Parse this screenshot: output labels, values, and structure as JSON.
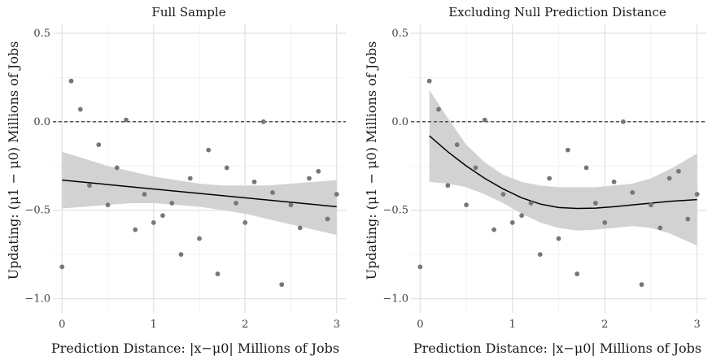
{
  "chart_data": [
    {
      "type": "scatter",
      "title": "Full Sample",
      "xlabel": "Prediction Distance: |x−μ0| Millions of Jobs",
      "ylabel": "Updating: (μ1 − μ0) Millions of Jobs",
      "x_ticks": [
        "0",
        "1",
        "2",
        "3"
      ],
      "y_ticks": [
        "−1.0",
        "−0.5",
        "0.0",
        "0.5"
      ],
      "xlim": [
        -0.1,
        3.1
      ],
      "ylim": [
        -1.08,
        0.55
      ],
      "reference_line_y": 0,
      "grid": true,
      "points": [
        {
          "x": 0.0,
          "y": -0.82
        },
        {
          "x": 0.1,
          "y": 0.23
        },
        {
          "x": 0.2,
          "y": 0.07
        },
        {
          "x": 0.3,
          "y": -0.36
        },
        {
          "x": 0.4,
          "y": -0.13
        },
        {
          "x": 0.5,
          "y": -0.47
        },
        {
          "x": 0.6,
          "y": -0.26
        },
        {
          "x": 0.7,
          "y": 0.01
        },
        {
          "x": 0.8,
          "y": -0.61
        },
        {
          "x": 0.9,
          "y": -0.41
        },
        {
          "x": 1.0,
          "y": -0.57
        },
        {
          "x": 1.1,
          "y": -0.53
        },
        {
          "x": 1.2,
          "y": -0.46
        },
        {
          "x": 1.3,
          "y": -0.75
        },
        {
          "x": 1.4,
          "y": -0.32
        },
        {
          "x": 1.5,
          "y": -0.66
        },
        {
          "x": 1.6,
          "y": -0.16
        },
        {
          "x": 1.7,
          "y": -0.86
        },
        {
          "x": 1.8,
          "y": -0.26
        },
        {
          "x": 1.9,
          "y": -0.46
        },
        {
          "x": 2.0,
          "y": -0.57
        },
        {
          "x": 2.1,
          "y": -0.34
        },
        {
          "x": 2.2,
          "y": 0.0
        },
        {
          "x": 2.3,
          "y": -0.4
        },
        {
          "x": 2.4,
          "y": -0.92
        },
        {
          "x": 2.5,
          "y": -0.47
        },
        {
          "x": 2.6,
          "y": -0.6
        },
        {
          "x": 2.7,
          "y": -0.32
        },
        {
          "x": 2.8,
          "y": -0.28
        },
        {
          "x": 2.9,
          "y": -0.55
        },
        {
          "x": 3.0,
          "y": -0.41
        }
      ],
      "fit": {
        "x": [
          0.0,
          3.0
        ],
        "y": [
          -0.33,
          -0.48
        ]
      },
      "band": {
        "x": [
          0.0,
          0.25,
          0.5,
          0.75,
          1.0,
          1.25,
          1.5,
          1.75,
          2.0,
          2.25,
          2.5,
          2.75,
          3.0
        ],
        "lower": [
          -0.49,
          -0.48,
          -0.47,
          -0.46,
          -0.46,
          -0.47,
          -0.48,
          -0.5,
          -0.52,
          -0.55,
          -0.58,
          -0.61,
          -0.64
        ],
        "upper": [
          -0.17,
          -0.21,
          -0.25,
          -0.28,
          -0.31,
          -0.33,
          -0.35,
          -0.36,
          -0.36,
          -0.36,
          -0.35,
          -0.34,
          -0.33
        ]
      }
    },
    {
      "type": "scatter",
      "title": "Excluding Null Prediction Distance",
      "xlabel": "Prediction Distance: |x−μ0| Millions of Jobs",
      "ylabel": "Updating: (μ1 − μ0) Millions of Jobs",
      "x_ticks": [
        "0",
        "1",
        "2",
        "3"
      ],
      "y_ticks": [
        "−1.0",
        "−0.5",
        "0.0",
        "0.5"
      ],
      "xlim": [
        -0.1,
        3.1
      ],
      "ylim": [
        -1.08,
        0.55
      ],
      "reference_line_y": 0,
      "grid": true,
      "points": [
        {
          "x": 0.0,
          "y": -0.82
        },
        {
          "x": 0.1,
          "y": 0.23
        },
        {
          "x": 0.2,
          "y": 0.07
        },
        {
          "x": 0.3,
          "y": -0.36
        },
        {
          "x": 0.4,
          "y": -0.13
        },
        {
          "x": 0.5,
          "y": -0.47
        },
        {
          "x": 0.6,
          "y": -0.26
        },
        {
          "x": 0.7,
          "y": 0.01
        },
        {
          "x": 0.8,
          "y": -0.61
        },
        {
          "x": 0.9,
          "y": -0.41
        },
        {
          "x": 1.0,
          "y": -0.57
        },
        {
          "x": 1.1,
          "y": -0.53
        },
        {
          "x": 1.2,
          "y": -0.46
        },
        {
          "x": 1.3,
          "y": -0.75
        },
        {
          "x": 1.4,
          "y": -0.32
        },
        {
          "x": 1.5,
          "y": -0.66
        },
        {
          "x": 1.6,
          "y": -0.16
        },
        {
          "x": 1.7,
          "y": -0.86
        },
        {
          "x": 1.8,
          "y": -0.26
        },
        {
          "x": 1.9,
          "y": -0.46
        },
        {
          "x": 2.0,
          "y": -0.57
        },
        {
          "x": 2.1,
          "y": -0.34
        },
        {
          "x": 2.2,
          "y": 0.0
        },
        {
          "x": 2.3,
          "y": -0.4
        },
        {
          "x": 2.4,
          "y": -0.92
        },
        {
          "x": 2.5,
          "y": -0.47
        },
        {
          "x": 2.6,
          "y": -0.6
        },
        {
          "x": 2.7,
          "y": -0.32
        },
        {
          "x": 2.8,
          "y": -0.28
        },
        {
          "x": 2.9,
          "y": -0.55
        },
        {
          "x": 3.0,
          "y": -0.41
        }
      ],
      "fit": {
        "x": [
          0.1,
          0.3,
          0.5,
          0.7,
          0.9,
          1.1,
          1.3,
          1.5,
          1.7,
          1.9,
          2.1,
          2.3,
          2.5,
          2.7,
          3.0
        ],
        "y": [
          -0.08,
          -0.17,
          -0.25,
          -0.32,
          -0.38,
          -0.43,
          -0.465,
          -0.485,
          -0.49,
          -0.488,
          -0.48,
          -0.47,
          -0.46,
          -0.45,
          -0.44
        ]
      },
      "band": {
        "x": [
          0.1,
          0.3,
          0.5,
          0.7,
          0.9,
          1.1,
          1.3,
          1.5,
          1.7,
          1.9,
          2.1,
          2.3,
          2.5,
          2.7,
          3.0
        ],
        "lower": [
          -0.34,
          -0.35,
          -0.37,
          -0.41,
          -0.46,
          -0.52,
          -0.57,
          -0.6,
          -0.615,
          -0.61,
          -0.6,
          -0.59,
          -0.6,
          -0.63,
          -0.7
        ],
        "upper": [
          0.18,
          0.02,
          -0.13,
          -0.23,
          -0.3,
          -0.34,
          -0.36,
          -0.37,
          -0.37,
          -0.37,
          -0.36,
          -0.35,
          -0.32,
          -0.27,
          -0.18
        ]
      }
    }
  ]
}
